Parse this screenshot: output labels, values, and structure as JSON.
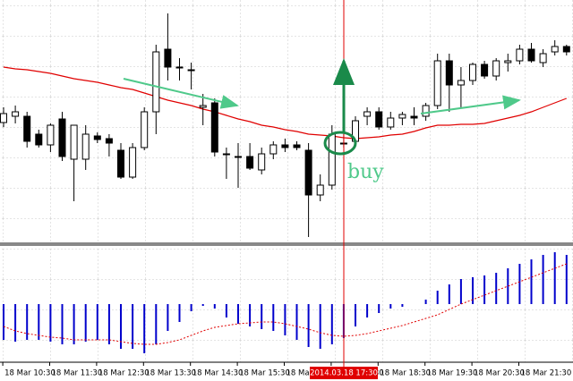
{
  "chart_data": {
    "type": "candlestick",
    "categories": [
      null,
      "18 Mar 10:30",
      null,
      null,
      null,
      "18 Mar 11:30",
      null,
      null,
      null,
      "18 Mar 12:30",
      null,
      null,
      null,
      "18 Mar 13:30",
      null,
      null,
      null,
      "18 Mar 14:30",
      null,
      null,
      null,
      "18 Mar 15:30",
      null,
      null,
      null,
      "18 Mar 16:30",
      null,
      null,
      null,
      "18 Mar 17:30",
      null,
      null,
      null,
      "18 Mar 18:30",
      null,
      null,
      null,
      "18 Mar 19:30",
      null,
      null,
      null,
      "18 Mar 20:30",
      null,
      null,
      null,
      "18 Mar 21:30",
      null,
      null,
      null
    ],
    "open": [
      133,
      140,
      140,
      120,
      108,
      137,
      92,
      92,
      118,
      115,
      102,
      72,
      105,
      145,
      215,
      195,
      192,
      150,
      155,
      98,
      95,
      95,
      80,
      98,
      108,
      108,
      102,
      52,
      63,
      110,
      112,
      140,
      145,
      128,
      138,
      140,
      140,
      152,
      202,
      175,
      180,
      198,
      185,
      200,
      202,
      215,
      200,
      212,
      218
    ],
    "high": [
      150,
      152,
      145,
      125,
      132,
      145,
      130,
      130,
      122,
      120,
      110,
      110,
      150,
      220,
      255,
      205,
      200,
      165,
      160,
      105,
      110,
      110,
      105,
      112,
      115,
      112,
      110,
      75,
      130,
      120,
      140,
      150,
      150,
      145,
      145,
      150,
      155,
      210,
      210,
      195,
      200,
      202,
      205,
      210,
      220,
      222,
      215,
      225,
      220
    ],
    "low": [
      128,
      132,
      105,
      105,
      100,
      90,
      45,
      80,
      110,
      95,
      70,
      70,
      102,
      120,
      180,
      180,
      170,
      130,
      95,
      70,
      60,
      80,
      75,
      92,
      100,
      102,
      5,
      45,
      58,
      105,
      108,
      130,
      125,
      125,
      130,
      130,
      135,
      148,
      145,
      150,
      175,
      182,
      180,
      190,
      198,
      200,
      195,
      208,
      208
    ],
    "close": [
      143,
      145,
      112,
      108,
      130,
      95,
      130,
      120,
      114,
      110,
      72,
      105,
      145,
      212,
      195,
      195,
      192,
      152,
      100,
      98,
      95,
      82,
      98,
      108,
      105,
      105,
      52,
      63,
      120,
      110,
      135,
      145,
      128,
      138,
      142,
      138,
      152,
      202,
      175,
      180,
      198,
      185,
      202,
      202,
      215,
      202,
      210,
      218,
      212
    ],
    "ylim": [
      0,
      270
    ],
    "up_color": "#ffffff",
    "down_color": "#000000",
    "ma": {
      "color": "#e00000",
      "values": [
        195,
        193,
        192,
        190,
        188,
        185,
        182,
        180,
        178,
        175,
        172,
        170,
        166,
        162,
        158,
        155,
        152,
        148,
        145,
        141,
        137,
        134,
        130,
        128,
        125,
        123,
        120,
        119,
        118,
        116,
        115,
        116,
        117,
        119,
        120,
        123,
        127,
        130,
        130,
        131,
        131,
        132,
        135,
        138,
        141,
        145,
        150,
        155,
        160
      ]
    },
    "indicator": {
      "color": "#0000cc",
      "signal_color": "#e00000",
      "ylim": [
        -65,
        62
      ],
      "values": [
        -40,
        -42,
        -40,
        -40,
        -42,
        -45,
        -45,
        -42,
        -40,
        -45,
        -50,
        -50,
        -55,
        -45,
        -30,
        -20,
        -8,
        -2,
        -5,
        -15,
        -22,
        -25,
        -28,
        -30,
        -35,
        -40,
        -48,
        -50,
        -45,
        -38,
        -25,
        -15,
        -10,
        -5,
        -3,
        0,
        5,
        15,
        22,
        28,
        30,
        32,
        35,
        40,
        45,
        50,
        55,
        58,
        55
      ],
      "signal": [
        -25,
        -30,
        -33,
        -35,
        -37,
        -38,
        -40,
        -40,
        -40,
        -40,
        -42,
        -44,
        -45,
        -45,
        -43,
        -40,
        -35,
        -30,
        -26,
        -24,
        -22,
        -21,
        -20,
        -20,
        -22,
        -25,
        -28,
        -32,
        -35,
        -36,
        -35,
        -33,
        -30,
        -27,
        -24,
        -20,
        -16,
        -12,
        -6,
        0,
        5,
        10,
        15,
        20,
        25,
        30,
        35,
        40,
        45
      ]
    },
    "crosshair_label": "2014.03.18 17:30",
    "annotation": "buy",
    "annotation_color": "#4fc98a"
  }
}
